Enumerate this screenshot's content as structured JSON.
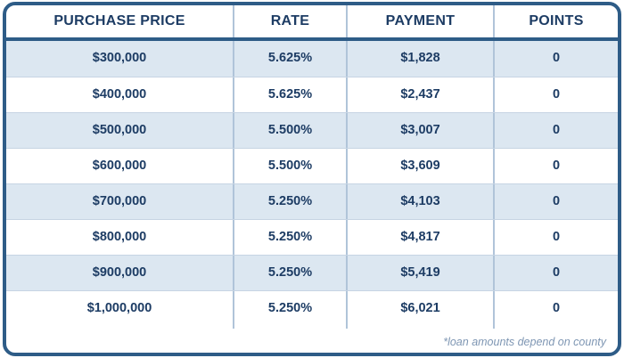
{
  "chart_data": {
    "type": "table",
    "title": "",
    "columns": [
      "PURCHASE PRICE",
      "RATE",
      "PAYMENT",
      "POINTS"
    ],
    "rows": [
      [
        "$300,000",
        "5.625%",
        "$1,828",
        "0"
      ],
      [
        "$400,000",
        "5.625%",
        "$2,437",
        "0"
      ],
      [
        "$500,000",
        "5.500%",
        "$3,007",
        "0"
      ],
      [
        "$600,000",
        "5.500%",
        "$3,609",
        "0"
      ],
      [
        "$700,000",
        "5.250%",
        "$4,103",
        "0"
      ],
      [
        "$800,000",
        "5.250%",
        "$4,817",
        "0"
      ],
      [
        "$900,000",
        "5.250%",
        "$5,419",
        "0"
      ],
      [
        "$1,000,000",
        "5.250%",
        "$6,021",
        "0"
      ]
    ],
    "footnote": "*loan amounts depend on county",
    "layout": {
      "zebra_striping": "odd rows shaded light blue",
      "header_position": "top"
    }
  },
  "colors": {
    "border": "#2e5c87",
    "header_text": "#1d3c64",
    "cell_text": "#1d3c64",
    "row_alt_background": "#dce7f1",
    "column_divider": "#b0c4d9",
    "row_divider": "#c6d4e3",
    "footnote_text": "#7e96b3"
  }
}
